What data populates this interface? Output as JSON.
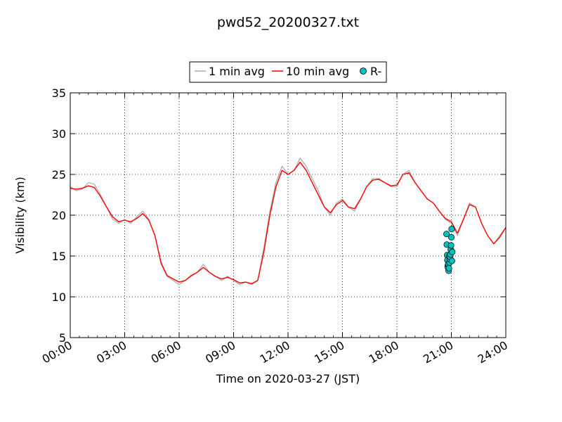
{
  "chart_data": {
    "type": "line",
    "title": "pwd52_20200327.txt",
    "xlabel": "Time on 2020-03-27 (JST)",
    "ylabel": "Visibility (km)",
    "xlim": [
      "00:00",
      "24:00"
    ],
    "ylim": [
      5,
      35
    ],
    "x_ticks": [
      "00:00",
      "03:00",
      "06:00",
      "09:00",
      "12:00",
      "15:00",
      "18:00",
      "21:00",
      "24:00"
    ],
    "y_ticks": [
      5,
      10,
      15,
      20,
      25,
      30,
      35
    ],
    "grid": true,
    "legend_position": "top-center, above plot",
    "series": [
      {
        "name": "1 min avg",
        "style": "line",
        "color": "#aaaaaa",
        "x": [
          "00:00",
          "00:20",
          "00:40",
          "01:00",
          "01:20",
          "01:40",
          "02:00",
          "02:20",
          "02:40",
          "03:00",
          "03:20",
          "03:40",
          "04:00",
          "04:20",
          "04:40",
          "05:00",
          "05:20",
          "05:40",
          "06:00",
          "06:20",
          "06:40",
          "07:00",
          "07:20",
          "07:40",
          "08:00",
          "08:20",
          "08:40",
          "09:00",
          "09:20",
          "09:40",
          "10:00",
          "10:20",
          "10:40",
          "11:00",
          "11:20",
          "11:40",
          "12:00",
          "12:20",
          "12:40",
          "13:00",
          "13:20",
          "13:40",
          "14:00",
          "14:20",
          "14:40",
          "15:00",
          "15:20",
          "15:40",
          "16:00",
          "16:20",
          "16:40",
          "17:00",
          "17:20",
          "17:40",
          "18:00",
          "18:20",
          "18:40",
          "19:00",
          "19:20",
          "19:40",
          "20:00",
          "20:20",
          "20:40",
          "21:00",
          "21:20",
          "21:40",
          "22:00",
          "22:20",
          "22:40",
          "23:00",
          "23:20",
          "23:40",
          "24:00"
        ],
        "values": [
          23.5,
          23.0,
          23.2,
          24.0,
          23.8,
          22.5,
          21.0,
          19.5,
          19.0,
          19.5,
          19.0,
          19.8,
          20.5,
          19.5,
          17.5,
          14.0,
          12.5,
          12.0,
          11.5,
          12.0,
          12.5,
          13.0,
          14.0,
          13.0,
          12.5,
          12.0,
          12.5,
          12.0,
          11.5,
          11.8,
          11.5,
          12.0,
          16.0,
          20.5,
          24.0,
          26.0,
          25.0,
          25.5,
          27.0,
          26.0,
          24.5,
          23.0,
          21.0,
          20.0,
          21.5,
          22.0,
          21.0,
          20.5,
          22.0,
          23.5,
          24.5,
          24.5,
          24.0,
          23.5,
          23.5,
          25.0,
          25.5,
          24.0,
          23.0,
          22.0,
          21.5,
          20.5,
          19.5,
          19.0,
          17.5,
          19.5,
          21.5,
          21.0,
          19.0,
          17.5,
          16.5,
          17.5,
          18.5
        ]
      },
      {
        "name": "10 min avg",
        "style": "line",
        "color": "#ff0000",
        "x": [
          "00:00",
          "00:20",
          "00:40",
          "01:00",
          "01:20",
          "01:40",
          "02:00",
          "02:20",
          "02:40",
          "03:00",
          "03:20",
          "03:40",
          "04:00",
          "04:20",
          "04:40",
          "05:00",
          "05:20",
          "05:40",
          "06:00",
          "06:20",
          "06:40",
          "07:00",
          "07:20",
          "07:40",
          "08:00",
          "08:20",
          "08:40",
          "09:00",
          "09:20",
          "09:40",
          "10:00",
          "10:20",
          "10:40",
          "11:00",
          "11:20",
          "11:40",
          "12:00",
          "12:20",
          "12:40",
          "13:00",
          "13:20",
          "13:40",
          "14:00",
          "14:20",
          "14:40",
          "15:00",
          "15:20",
          "15:40",
          "16:00",
          "16:20",
          "16:40",
          "17:00",
          "17:20",
          "17:40",
          "18:00",
          "18:20",
          "18:40",
          "19:00",
          "19:20",
          "19:40",
          "20:00",
          "20:20",
          "20:40",
          "21:00",
          "21:20",
          "21:40",
          "22:00",
          "22:20",
          "22:40",
          "23:00",
          "23:20",
          "23:40",
          "24:00"
        ],
        "values": [
          23.3,
          23.2,
          23.3,
          23.6,
          23.4,
          22.3,
          21.0,
          19.8,
          19.2,
          19.4,
          19.2,
          19.6,
          20.2,
          19.4,
          17.5,
          14.2,
          12.6,
          12.2,
          11.8,
          12.0,
          12.6,
          13.0,
          13.6,
          13.0,
          12.5,
          12.2,
          12.4,
          12.1,
          11.7,
          11.8,
          11.6,
          12.0,
          15.5,
          20.0,
          23.5,
          25.5,
          25.0,
          25.5,
          26.5,
          25.5,
          24.0,
          22.5,
          21.0,
          20.3,
          21.3,
          21.8,
          21.0,
          20.8,
          22.0,
          23.5,
          24.3,
          24.4,
          24.0,
          23.6,
          23.7,
          25.0,
          25.2,
          24.0,
          23.0,
          22.0,
          21.5,
          20.5,
          19.6,
          19.2,
          17.8,
          19.5,
          21.3,
          21.0,
          19.0,
          17.5,
          16.5,
          17.3,
          18.5
        ]
      },
      {
        "name": "R-",
        "style": "scatter",
        "color": "#00c0c0",
        "x": [
          "20:44",
          "20:45",
          "20:46",
          "20:47",
          "20:48",
          "20:49",
          "20:50",
          "20:51",
          "20:52",
          "20:53",
          "20:54",
          "20:55",
          "20:56",
          "20:57",
          "20:58",
          "20:59",
          "21:00",
          "21:01",
          "21:02",
          "21:03"
        ],
        "values": [
          17.7,
          16.4,
          15.1,
          14.5,
          13.8,
          13.6,
          14.0,
          13.2,
          13.5,
          15.0,
          14.2,
          14.6,
          14.9,
          15.2,
          15.8,
          16.3,
          17.3,
          18.3,
          14.4,
          15.5
        ]
      }
    ]
  }
}
